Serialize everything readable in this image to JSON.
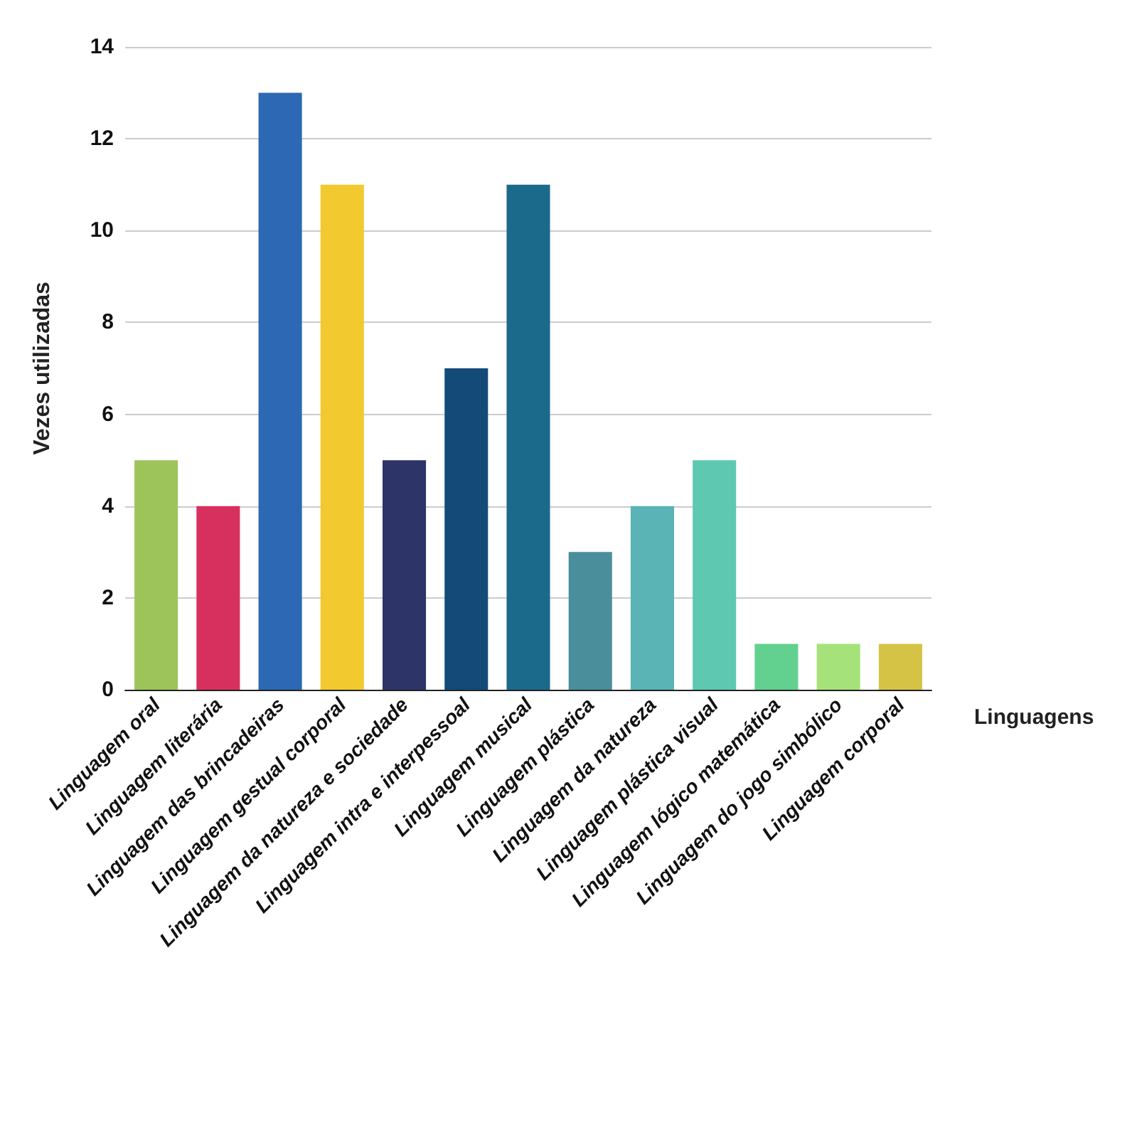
{
  "chart_data": {
    "type": "bar",
    "xlabel": "Linguagens",
    "ylabel": "Vezes utilizadas",
    "categories": [
      "Linguagem oral",
      "Linguagem literária",
      "Linguagem das brincadeiras",
      "Linguagem gestual corporal",
      "Linguagem da natureza e sociedade",
      "Linguagem intra e interpessoal",
      "Linguagem musical",
      "Linguagem plástica",
      "Linguagem da natureza",
      "Linguagem plástica visual",
      "Linguagem lógico matemática",
      "Linguagem do jogo simbólico",
      "Linguagem corporal"
    ],
    "values": [
      5,
      4,
      13,
      11,
      5,
      7,
      11,
      3,
      4,
      5,
      1,
      1,
      1
    ],
    "colors": [
      "#9dc45a",
      "#d8305e",
      "#2c68b3",
      "#f2c92e",
      "#2d3468",
      "#134a78",
      "#1b6a8c",
      "#4a8e9c",
      "#5ab3b5",
      "#5ec9b0",
      "#62d08e",
      "#a6e27a",
      "#d5c346"
    ],
    "ylim": [
      0,
      14
    ],
    "yticks": [
      0,
      2,
      4,
      6,
      8,
      10,
      12,
      14
    ],
    "grid": "y"
  }
}
